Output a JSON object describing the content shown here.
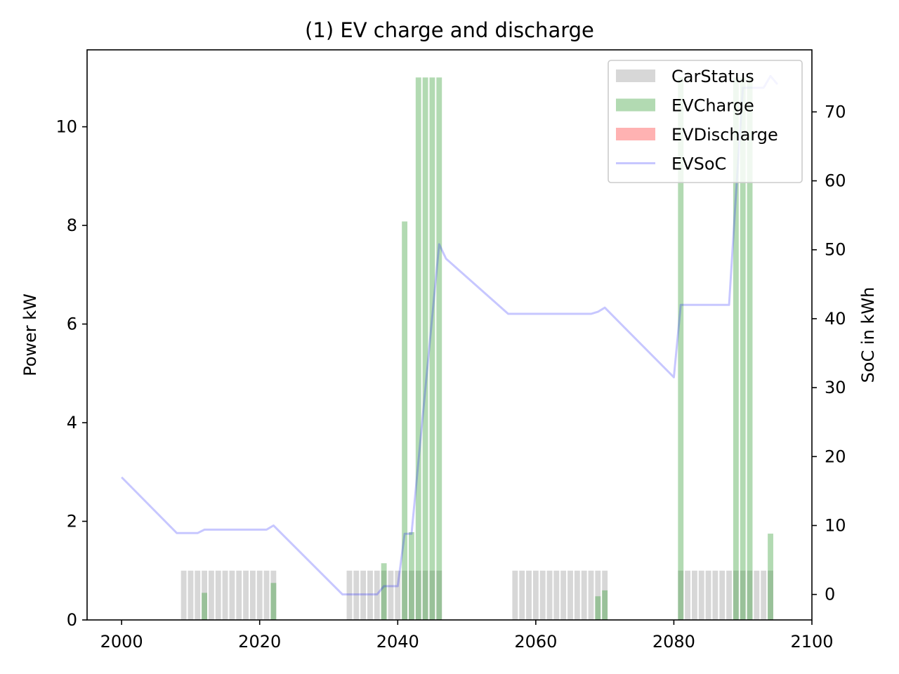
{
  "chart_data": {
    "type": "bar",
    "title": "(1) EV charge and discharge",
    "xlabel": "",
    "ylabel": "Power kW",
    "y2label": "SoC in kWh",
    "xlim": [
      1995,
      2100
    ],
    "ylim": [
      0,
      11.56
    ],
    "y2lim": [
      -3.7,
      79
    ],
    "x_ticks": [
      2000,
      2020,
      2040,
      2060,
      2080,
      2100
    ],
    "y_ticks": [
      0,
      2,
      4,
      6,
      8,
      10
    ],
    "y2_ticks": [
      0,
      10,
      20,
      30,
      40,
      50,
      60,
      70
    ],
    "bar_width": 0.8,
    "legend": {
      "position": "top-right"
    },
    "series": [
      {
        "name": "CarStatus",
        "kind": "bar",
        "color": "#d3d3d3",
        "x": [
          2009,
          2010,
          2011,
          2012,
          2013,
          2014,
          2015,
          2016,
          2017,
          2018,
          2019,
          2020,
          2021,
          2022,
          2033,
          2034,
          2035,
          2036,
          2037,
          2038,
          2039,
          2040,
          2041,
          2042,
          2043,
          2044,
          2045,
          2046,
          2057,
          2058,
          2059,
          2060,
          2061,
          2062,
          2063,
          2064,
          2065,
          2066,
          2067,
          2068,
          2069,
          2070,
          2081,
          2082,
          2083,
          2084,
          2085,
          2086,
          2087,
          2088,
          2089,
          2090,
          2091,
          2092,
          2093,
          2094
        ],
        "values": [
          1,
          1,
          1,
          1,
          1,
          1,
          1,
          1,
          1,
          1,
          1,
          1,
          1,
          1,
          1,
          1,
          1,
          1,
          1,
          1,
          1,
          1,
          1,
          1,
          1,
          1,
          1,
          1,
          1,
          1,
          1,
          1,
          1,
          1,
          1,
          1,
          1,
          1,
          1,
          1,
          1,
          1,
          1,
          1,
          1,
          1,
          1,
          1,
          1,
          1,
          1,
          1,
          1,
          1,
          1,
          1
        ]
      },
      {
        "name": "EVCharge",
        "kind": "bar",
        "color": "#2e9b2e",
        "x": [
          2012,
          2022,
          2038,
          2041,
          2042,
          2043,
          2044,
          2045,
          2046,
          2069,
          2070,
          2081,
          2089,
          2090,
          2091,
          2094
        ],
        "values": [
          0.55,
          0.75,
          1.15,
          8.08,
          1.78,
          11,
          11,
          11,
          11,
          0.48,
          0.6,
          11,
          11,
          11,
          11,
          1.75
        ]
      },
      {
        "name": "EVDischarge",
        "kind": "bar",
        "color": "#ff0000",
        "x": [],
        "values": []
      },
      {
        "name": "EVSoC",
        "kind": "line",
        "axis": "right",
        "color": "#0000ff",
        "x": [
          2000,
          2008,
          2009,
          2010,
          2011,
          2012,
          2013,
          2014,
          2015,
          2016,
          2017,
          2018,
          2019,
          2020,
          2021,
          2022,
          2032,
          2033,
          2034,
          2035,
          2036,
          2037,
          2038,
          2039,
          2040,
          2041,
          2042,
          2046,
          2047,
          2056,
          2057,
          2058,
          2059,
          2060,
          2061,
          2062,
          2063,
          2064,
          2065,
          2066,
          2067,
          2068,
          2069,
          2070,
          2080,
          2081,
          2082,
          2083,
          2084,
          2085,
          2086,
          2087,
          2088,
          2089,
          2090,
          2091,
          2092,
          2093,
          2094,
          2095
        ],
        "values": [
          17,
          8.9,
          8.9,
          8.9,
          8.9,
          9.4,
          9.4,
          9.4,
          9.4,
          9.4,
          9.4,
          9.4,
          9.4,
          9.4,
          9.4,
          10,
          0,
          0,
          0,
          0,
          0,
          0,
          1.2,
          1.2,
          1.2,
          8.8,
          8.8,
          50.8,
          48.7,
          40.7,
          40.7,
          40.7,
          40.7,
          40.7,
          40.7,
          40.7,
          40.7,
          40.7,
          40.7,
          40.7,
          40.7,
          40.7,
          41,
          41.6,
          31.5,
          42,
          42,
          42,
          42,
          42,
          42,
          42,
          42,
          58,
          73.5,
          73.5,
          73.5,
          73.5,
          75.2,
          74
        ]
      }
    ]
  }
}
